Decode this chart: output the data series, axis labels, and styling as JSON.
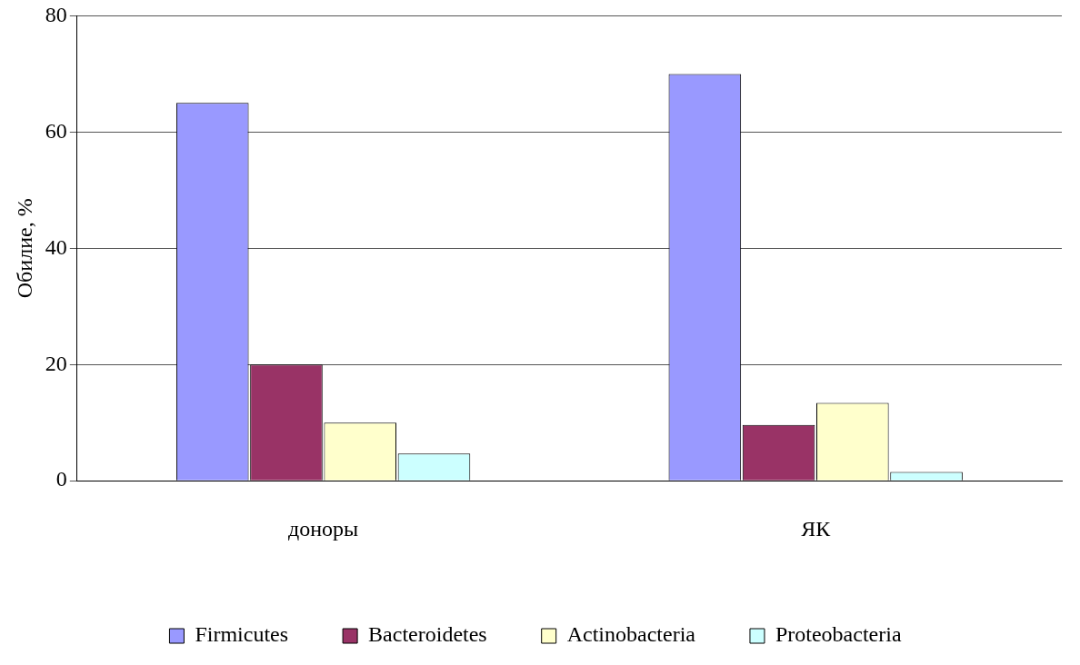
{
  "chart_data": {
    "type": "bar",
    "ylabel": "Обилие, %",
    "categories": [
      "доноры",
      "ЯК"
    ],
    "series": [
      {
        "name": "Firmicutes",
        "color": "#9999ff",
        "values": [
          65,
          70
        ]
      },
      {
        "name": "Bacteroidetes",
        "color": "#993366",
        "values": [
          20,
          9.6
        ]
      },
      {
        "name": "Actinobacteria",
        "color": "#ffffcc",
        "values": [
          10,
          13.4
        ]
      },
      {
        "name": "Proteobacteria",
        "color": "#ccffff",
        "values": [
          4.7,
          1.5
        ]
      }
    ],
    "ylim": [
      0,
      80
    ],
    "yticks": [
      0,
      20,
      40,
      60,
      80
    ],
    "grid": "y",
    "legend": "bottom"
  }
}
